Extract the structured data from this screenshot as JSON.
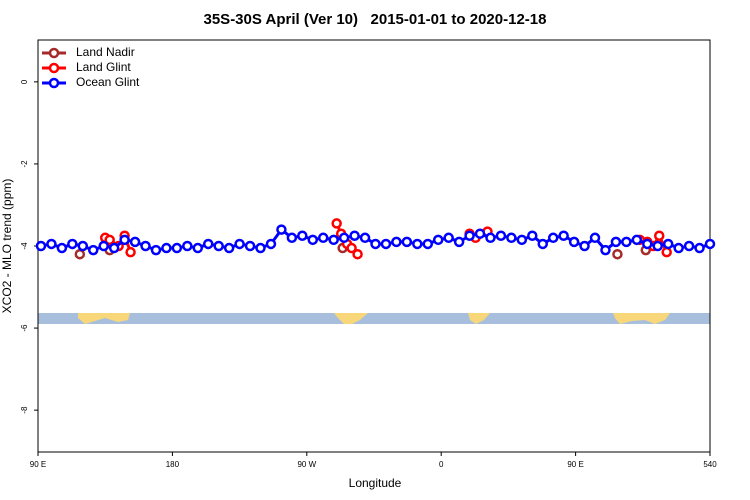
{
  "chart_data": {
    "type": "line",
    "title": "35S-30S April (Ver 10)   2015-01-01 to 2020-12-18",
    "x_label": "Longitude",
    "y_label": "XCO2 - MLO trend (ppm)",
    "xlim": [
      90,
      540
    ],
    "ylim": [
      -9.02,
      1.02
    ],
    "xticks": [
      {
        "value": 90,
        "label": "90 E"
      },
      180,
      {
        "value": 270,
        "label": "90 W"
      },
      {
        "value": 360,
        "label": "0"
      },
      {
        "value": 450,
        "label": "90 E"
      },
      540
    ],
    "yticks": [
      0,
      -2,
      -4,
      -6,
      -8
    ],
    "legend": "top-left",
    "series": [
      {
        "name": "Land Nadir",
        "color": "#a52a2a",
        "x": [
          118,
          null,
          138,
          null,
          294,
          null,
          478,
          null,
          497
        ],
        "values": [
          -4.2,
          null,
          -4.1,
          null,
          -4.05,
          null,
          -4.2,
          null,
          -4.1
        ]
      },
      {
        "name": "Land Glint",
        "color": "#ff0000",
        "x": [
          135,
          138,
          144,
          148,
          152,
          null,
          290,
          293,
          297,
          300,
          304,
          null,
          379,
          383,
          391,
          null,
          493,
          498,
          502,
          506,
          511
        ],
        "values": [
          -3.8,
          -3.85,
          -4.0,
          -3.75,
          -4.15,
          null,
          -3.45,
          -3.7,
          -3.95,
          -4.05,
          -4.2,
          null,
          -3.7,
          -3.8,
          -3.65,
          null,
          -3.85,
          -3.9,
          -4.0,
          -3.75,
          -4.15
        ]
      },
      {
        "name": "Ocean Glint",
        "color": "#0000ff",
        "x": [
          92,
          99,
          106,
          113,
          120,
          127,
          134,
          141,
          148,
          155,
          162,
          169,
          176,
          183,
          190,
          197,
          204,
          211,
          218,
          225,
          232,
          239,
          246,
          253,
          260,
          267,
          274,
          281,
          288,
          295,
          302,
          309,
          316,
          323,
          330,
          337,
          344,
          351,
          358,
          365,
          372,
          379,
          386,
          393,
          400,
          407,
          414,
          421,
          428,
          435,
          442,
          449,
          456,
          463,
          470,
          477,
          484,
          491,
          498,
          505,
          512,
          519,
          526,
          533,
          540
        ],
        "values": [
          -4.0,
          -3.95,
          -4.05,
          -3.95,
          -4.0,
          -4.1,
          -4.0,
          -4.05,
          -3.85,
          -3.9,
          -4.0,
          -4.1,
          -4.05,
          -4.05,
          -4.0,
          -4.05,
          -3.95,
          -4.0,
          -4.05,
          -3.95,
          -4.0,
          -4.05,
          -3.95,
          -3.6,
          -3.8,
          -3.75,
          -3.85,
          -3.8,
          -3.85,
          -3.8,
          -3.75,
          -3.8,
          -3.95,
          -3.95,
          -3.9,
          -3.9,
          -3.95,
          -3.95,
          -3.85,
          -3.8,
          -3.9,
          -3.75,
          -3.7,
          -3.8,
          -3.75,
          -3.8,
          -3.85,
          -3.75,
          -3.95,
          -3.8,
          -3.75,
          -3.9,
          -4.0,
          -3.8,
          -4.1,
          -3.9,
          -3.9,
          -3.85,
          -3.95,
          -4.0,
          -3.95,
          -4.05,
          -4.0,
          -4.05,
          -3.95
        ]
      }
    ]
  }
}
